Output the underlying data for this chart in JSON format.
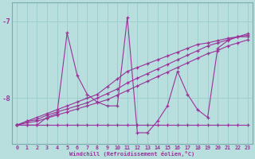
{
  "xlabel": "Windchill (Refroidissement éolien,°C)",
  "bg_color": "#b8dede",
  "grid_color": "#9ecece",
  "line_color": "#993399",
  "x_labels": [
    "0",
    "1",
    "2",
    "3",
    "4",
    "5",
    "6",
    "7",
    "8",
    "9",
    "10",
    "11",
    "12",
    "13",
    "14",
    "15",
    "16",
    "17",
    "18",
    "19",
    "20",
    "21",
    "22",
    "23"
  ],
  "ylim": [
    -8.6,
    -6.75
  ],
  "yticks": [
    -8,
    -7
  ],
  "series": [
    [
      -8.35,
      -8.35,
      -8.35,
      -8.25,
      -8.2,
      -7.15,
      -7.7,
      -7.95,
      -8.05,
      -8.1,
      -8.1,
      -6.95,
      -8.45,
      -8.45,
      -8.3,
      -8.1,
      -7.65,
      -7.95,
      -8.15,
      -8.25,
      -7.35,
      -7.25,
      -7.2,
      -7.2
    ],
    [
      -8.35,
      -8.3,
      -8.25,
      -8.2,
      -8.15,
      -8.1,
      -8.05,
      -8.0,
      -7.95,
      -7.85,
      -7.75,
      -7.65,
      -7.6,
      -7.55,
      -7.5,
      -7.45,
      -7.4,
      -7.35,
      -7.3,
      -7.28,
      -7.25,
      -7.22,
      -7.2,
      -7.18
    ],
    [
      -8.35,
      -8.3,
      -8.28,
      -8.22,
      -8.18,
      -8.14,
      -8.1,
      -8.06,
      -8.0,
      -7.94,
      -7.88,
      -7.8,
      -7.74,
      -7.68,
      -7.62,
      -7.56,
      -7.5,
      -7.44,
      -7.38,
      -7.32,
      -7.28,
      -7.24,
      -7.2,
      -7.16
    ],
    [
      -8.35,
      -8.32,
      -8.3,
      -8.26,
      -8.22,
      -8.18,
      -8.14,
      -8.1,
      -8.06,
      -8.02,
      -7.96,
      -7.9,
      -7.84,
      -7.78,
      -7.72,
      -7.66,
      -7.6,
      -7.54,
      -7.48,
      -7.42,
      -7.38,
      -7.32,
      -7.28,
      -7.24
    ],
    [
      -8.35,
      -8.35,
      -8.35,
      -8.35,
      -8.35,
      -8.35,
      -8.35,
      -8.35,
      -8.35,
      -8.35,
      -8.35,
      -8.35,
      -8.35,
      -8.35,
      -8.35,
      -8.35,
      -8.35,
      -8.35,
      -8.35,
      -8.35,
      -8.35,
      -8.35,
      -8.35,
      -8.35
    ]
  ]
}
